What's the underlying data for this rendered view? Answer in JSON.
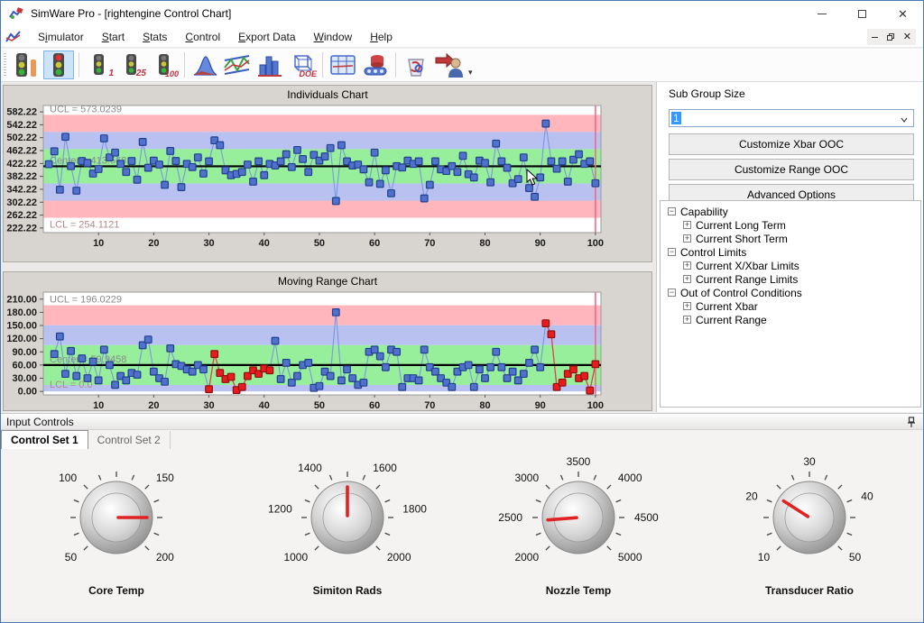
{
  "window": {
    "title": "SimWare Pro - [rightengine Control Chart]"
  },
  "menu": {
    "items": [
      {
        "label": "Simulator",
        "u": 1
      },
      {
        "label": "Start",
        "u": 0
      },
      {
        "label": "Stats",
        "u": 0
      },
      {
        "label": "Control",
        "u": 0
      },
      {
        "label": "Export Data",
        "u": 0
      },
      {
        "label": "Window",
        "u": 0
      },
      {
        "label": "Help",
        "u": 0
      }
    ]
  },
  "toolbar": {
    "buttons": [
      {
        "name": "toolbar-traffic-single",
        "type": "traffic-bar",
        "badge": "",
        "selected": false
      },
      {
        "name": "toolbar-traffic-run",
        "type": "traffic",
        "badge": "",
        "selected": true
      },
      {
        "name": "toolbar-run-1",
        "type": "traffic-num",
        "badge": "1",
        "selected": false
      },
      {
        "name": "toolbar-run-25",
        "type": "traffic-num",
        "badge": "25",
        "selected": false
      },
      {
        "name": "toolbar-run-100",
        "type": "traffic-num",
        "badge": "100",
        "selected": false
      },
      {
        "name": "toolbar-distribution",
        "type": "bell",
        "badge": "",
        "selected": false
      },
      {
        "name": "toolbar-control-chart",
        "type": "lines",
        "badge": "",
        "selected": false
      },
      {
        "name": "toolbar-histogram",
        "type": "hist",
        "badge": "",
        "selected": false
      },
      {
        "name": "toolbar-doe",
        "type": "doe",
        "badge": "DOE",
        "selected": false
      },
      {
        "name": "toolbar-data-table",
        "type": "table",
        "badge": "",
        "selected": false
      },
      {
        "name": "toolbar-database",
        "type": "db",
        "badge": "",
        "selected": false
      },
      {
        "name": "toolbar-recycle",
        "type": "recycle",
        "badge": "",
        "selected": false
      },
      {
        "name": "toolbar-export-user",
        "type": "export",
        "badge": "",
        "selected": false
      }
    ],
    "groups": [
      2,
      3,
      4,
      2,
      2
    ]
  },
  "right_panel": {
    "sub_group_label": "Sub Group Size",
    "sub_group_value": "1",
    "buttons": [
      "Customize Xbar OOC",
      "Customize Range OOC",
      "Advanced Options"
    ],
    "tree": [
      {
        "label": "Capability",
        "depth": 0,
        "glyph": "-"
      },
      {
        "label": "Current Long Term",
        "depth": 1,
        "glyph": "+"
      },
      {
        "label": "Current Short Term",
        "depth": 1,
        "glyph": "+"
      },
      {
        "label": "Control Limits",
        "depth": 0,
        "glyph": "-"
      },
      {
        "label": "Current X/Xbar Limits",
        "depth": 1,
        "glyph": "+"
      },
      {
        "label": "Current Range Limits",
        "depth": 1,
        "glyph": "+"
      },
      {
        "label": "Out of Control Conditions",
        "depth": 0,
        "glyph": "-"
      },
      {
        "label": "Current Xbar",
        "depth": 1,
        "glyph": "+"
      },
      {
        "label": "Current Range",
        "depth": 1,
        "glyph": "+"
      }
    ]
  },
  "input_controls": {
    "header": "Input Controls",
    "tabs": [
      {
        "label": "Control Set 1",
        "active": true
      },
      {
        "label": "Control Set 2",
        "active": false
      }
    ],
    "knobs": [
      {
        "name": "Core Temp",
        "min": 50,
        "max": 200,
        "labels": [
          50,
          100,
          150,
          200
        ],
        "value": 175
      },
      {
        "name": "Simiton Rads",
        "min": 1000,
        "max": 2000,
        "labels": [
          1000,
          1200,
          1400,
          1600,
          1800,
          2000
        ],
        "value": 1500
      },
      {
        "name": "Nozzle Temp",
        "min": 2000,
        "max": 5000,
        "labels": [
          2000,
          2500,
          3000,
          3500,
          4000,
          4500,
          5000
        ],
        "value": 2450
      },
      {
        "name": "Transducer Ratio",
        "min": 10,
        "max": 50,
        "labels": [
          10,
          20,
          30,
          40,
          50
        ],
        "value": 21.5
      }
    ]
  },
  "chart_data": [
    {
      "type": "line",
      "title": "Individuals Chart",
      "ucl": 573.0239,
      "center": 413.568,
      "lcl": 254.1121,
      "sigma": 53.152,
      "ucl_label": "UCL = 573.0239",
      "center_label": "Center = 413.568",
      "lcl_label": "LCL = 254.1121",
      "ylim": [
        208,
        602
      ],
      "yticks": [
        "582.22",
        "542.22",
        "502.22",
        "462.22",
        "422.22",
        "382.22",
        "342.22",
        "302.22",
        "262.22",
        "222.22"
      ],
      "ytick_values": [
        582.22,
        542.22,
        502.22,
        462.22,
        422.22,
        382.22,
        342.22,
        302.22,
        262.22,
        222.22
      ],
      "xticks": [
        10,
        20,
        30,
        40,
        50,
        60,
        70,
        80,
        90,
        100
      ],
      "x_start": 1,
      "cursor_x": 100,
      "lcl_text_below": true,
      "values": [
        420,
        460,
        341,
        505,
        414,
        338,
        430,
        424,
        391,
        405,
        500,
        441,
        456,
        421,
        396,
        430,
        372,
        489,
        409,
        431,
        419,
        356,
        461,
        430,
        349,
        421,
        411,
        441,
        391,
        429,
        494,
        479,
        401,
        386,
        390,
        396,
        419,
        366,
        429,
        386,
        421,
        416,
        429,
        451,
        411,
        464,
        436,
        396,
        449,
        431,
        444,
        470,
        306,
        479,
        429,
        416,
        419,
        404,
        364,
        456,
        359,
        401,
        330,
        414,
        410,
        431,
        421,
        429,
        314,
        356,
        429,
        404,
        399,
        414,
        396,
        446,
        389,
        379,
        431,
        424,
        364,
        484,
        429,
        409,
        361,
        374,
        441,
        346,
        319,
        379,
        546,
        429,
        406,
        429,
        366,
        434,
        451,
        421,
        429,
        361
      ],
      "red_x": []
    },
    {
      "type": "line",
      "title": "Moving Range Chart",
      "ucl": 196.0229,
      "center": 59.9458,
      "lcl": 0,
      "sigma": 45.359,
      "ucl_label": "UCL = 196.0229",
      "center_label": "Center = 59.9458",
      "lcl_label": "LCL = 0.0",
      "ylim": [
        -8,
        226
      ],
      "yticks": [
        "210.00",
        "180.00",
        "150.00",
        "120.00",
        "90.00",
        "60.00",
        "30.00",
        "0.00"
      ],
      "ytick_values": [
        210,
        180,
        150,
        120,
        90,
        60,
        30,
        0
      ],
      "xticks": [
        10,
        20,
        30,
        40,
        50,
        60,
        70,
        80,
        90,
        100
      ],
      "x_start": 2,
      "cursor_x": 100,
      "lcl_text_below": false,
      "values": [
        85,
        125,
        40,
        92,
        35,
        75,
        30,
        68,
        25,
        95,
        60,
        15,
        35,
        25,
        42,
        38,
        105,
        118,
        45,
        30,
        22,
        98,
        62,
        58,
        50,
        45,
        60,
        50,
        5,
        85,
        42,
        28,
        33,
        3,
        10,
        35,
        48,
        40,
        52,
        48,
        115,
        28,
        65,
        20,
        35,
        60,
        65,
        8,
        12,
        45,
        35,
        180,
        25,
        50,
        30,
        15,
        20,
        90,
        95,
        80,
        55,
        95,
        90,
        10,
        30,
        30,
        25,
        95,
        55,
        45,
        30,
        20,
        10,
        45,
        55,
        60,
        10,
        50,
        30,
        55,
        90,
        55,
        30,
        45,
        25,
        40,
        65,
        95,
        55,
        155,
        130,
        10,
        20,
        40,
        50,
        30,
        35,
        2,
        62
      ],
      "red_x": [
        30,
        31,
        32,
        33,
        34,
        35,
        36,
        37,
        38,
        39,
        40,
        41,
        91,
        92,
        93,
        94,
        95,
        96,
        97,
        98,
        99,
        100
      ]
    }
  ],
  "colors": {
    "zone_green": "#97ee9b",
    "zone_blue": "#b9c1f0",
    "zone_pink": "#ffb6bd",
    "marker_blue": "#5072cc",
    "marker_blue_stroke": "#23408f",
    "marker_red": "#e81c1c",
    "marker_red_stroke": "#8f1010",
    "line_blue": "#7b97dd",
    "line_red": "#e04040",
    "center_line": "#000000",
    "cursor_line": "#f06a86",
    "annotation": "#8a8a8a",
    "lcl_annotation": "#b08a8a"
  }
}
